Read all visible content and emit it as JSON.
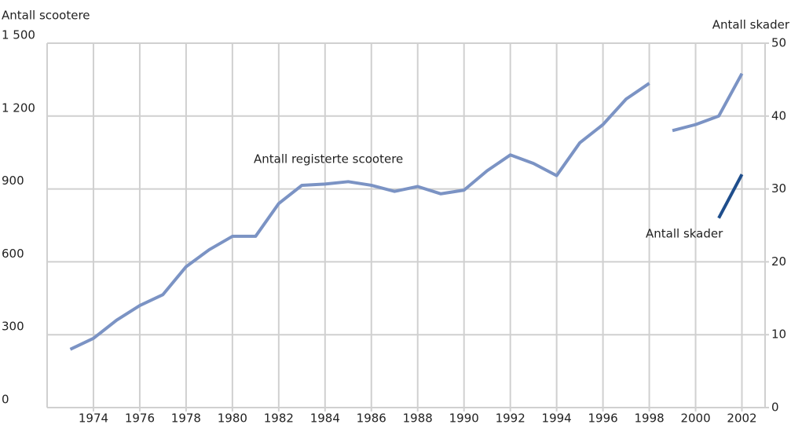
{
  "chart_data": {
    "type": "line",
    "y_label": "Antall scootere",
    "y2_label": "Antall skader",
    "xlim": [
      1972,
      2003
    ],
    "xticks": [
      1974,
      1976,
      1978,
      1980,
      1982,
      1984,
      1986,
      1988,
      1990,
      1992,
      1994,
      1996,
      1998,
      2000,
      2002
    ],
    "ylim": [
      0,
      1500
    ],
    "yticks": [
      0,
      300,
      600,
      900,
      {
        "value": 1200,
        "label": "1 200"
      },
      {
        "value": 1500,
        "label": "1 500"
      }
    ],
    "y2lim": [
      0,
      50
    ],
    "y2ticks": [
      0,
      10,
      20,
      30,
      40,
      50
    ],
    "grid": true,
    "series": [
      {
        "name": "Antall registerte scootere",
        "color": "#7b93c4",
        "x": [
          1973,
          1974,
          1975,
          1976,
          1977,
          1978,
          1979,
          1980,
          1981,
          1982,
          1983,
          1984,
          1985,
          1986,
          1987,
          1988,
          1989,
          1990,
          1991,
          1992,
          1993,
          1994,
          1995,
          1996,
          1997,
          1998
        ],
        "values": [
          240,
          285,
          360,
          420,
          465,
          580,
          650,
          705,
          705,
          840,
          915,
          920,
          930,
          915,
          890,
          910,
          880,
          895,
          975,
          1040,
          1005,
          955,
          1090,
          1165,
          1270,
          1335
        ]
      },
      {
        "color": "#7b93c4",
        "x": [
          1999,
          2000,
          2001,
          2002
        ],
        "values": [
          1140,
          1165,
          1200,
          1375
        ]
      },
      {
        "name": "Antall skader",
        "color": "#1f4e8c",
        "axis": "y2",
        "x": [
          2001,
          2002
        ],
        "values": [
          26,
          32
        ]
      }
    ]
  }
}
